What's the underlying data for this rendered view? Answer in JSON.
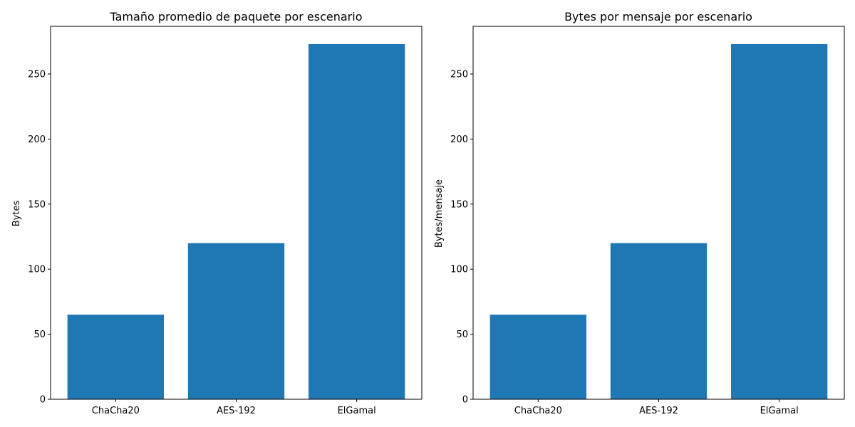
{
  "chart_data": [
    {
      "type": "bar",
      "title": "Tamaño promedio de paquete por escenario",
      "xlabel": "",
      "ylabel": "Bytes",
      "categories": [
        "ChaCha20",
        "AES-192",
        "ElGamal"
      ],
      "values": [
        65,
        120,
        273
      ],
      "ylim": [
        0,
        286.65
      ],
      "yticks": [
        0,
        50,
        100,
        150,
        200,
        250
      ],
      "bar_color": "#1f77b4",
      "grid": false,
      "legend": "none"
    },
    {
      "type": "bar",
      "title": "Bytes por mensaje por escenario",
      "xlabel": "",
      "ylabel": "Bytes/mensaje",
      "categories": [
        "ChaCha20",
        "AES-192",
        "ElGamal"
      ],
      "values": [
        65,
        120,
        273
      ],
      "ylim": [
        0,
        286.65
      ],
      "yticks": [
        0,
        50,
        100,
        150,
        200,
        250
      ],
      "bar_color": "#1f77b4",
      "grid": false,
      "legend": "none"
    }
  ]
}
